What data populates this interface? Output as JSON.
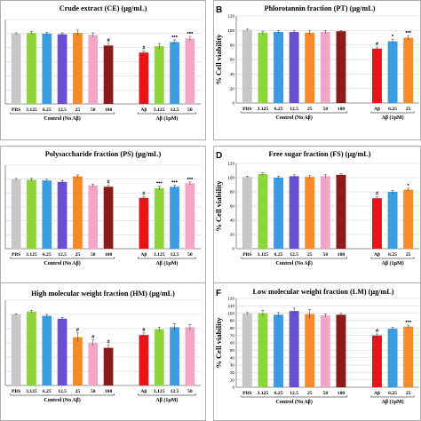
{
  "colors": {
    "PBS": "#c7c7c7",
    "c3125": "#8cd63a",
    "c625": "#3b9ce0",
    "c125": "#6b4fd1",
    "c25": "#f58a2a",
    "c50": "#f2a6c6",
    "c100": "#8b1c1c",
    "AB": "#e6141b"
  },
  "chart_data": [
    {
      "letter": "A",
      "title": "Crude extract (CE) (µg/mL)",
      "type": "bar",
      "ylabel": "",
      "ylim": [
        0,
        120
      ],
      "yticks": [],
      "grid": true,
      "categories": [
        "PBS",
        "3.125",
        "6.25",
        "12.5",
        "25",
        "50",
        "100",
        "Aβ",
        "3.125",
        "12.5",
        "50"
      ],
      "colorKeys": [
        "PBS",
        "c3125",
        "c625",
        "c125",
        "c25",
        "c50",
        "c100",
        "AB",
        "c3125",
        "c625",
        "c50"
      ],
      "values": [
        100,
        101,
        100,
        99,
        101,
        98,
        83,
        73,
        82,
        88,
        93
      ],
      "errors": [
        1,
        2,
        2,
        2,
        4,
        3,
        3,
        2,
        4,
        3,
        3
      ],
      "sig": [
        "",
        "",
        "",
        "",
        "",
        "",
        "#",
        "#",
        "",
        "•••",
        "•••"
      ],
      "groups": [
        "Control (No Aβ)",
        "Aβ (1μM)"
      ],
      "groupSizes": [
        7,
        4
      ]
    },
    {
      "letter": "B",
      "title": "Phlorotannin fraction (PT) (µg/mL)",
      "type": "bar",
      "ylabel": "% Cell viability",
      "ylim": [
        0,
        120
      ],
      "yticks": [
        0,
        20,
        40,
        60,
        80,
        100,
        120
      ],
      "grid": true,
      "categories": [
        "PBS",
        "3.125",
        "6.25",
        "12.5",
        "25",
        "50",
        "100",
        "Aβ",
        "6.25",
        "25"
      ],
      "colorKeys": [
        "PBS",
        "c3125",
        "c625",
        "c125",
        "c25",
        "c50",
        "c100",
        "AB",
        "c625",
        "c25"
      ],
      "values": [
        101,
        97,
        98,
        98,
        97,
        98,
        99,
        75,
        85,
        90
      ],
      "errors": [
        1,
        2,
        2,
        2,
        3,
        2,
        1,
        2,
        3,
        3
      ],
      "sig": [
        "",
        "",
        "",
        "",
        "",
        "",
        "",
        "#",
        "•",
        "•••"
      ],
      "groups": [
        "Control (No Aβ)",
        "Aβ (1μM)"
      ],
      "groupSizes": [
        7,
        3
      ]
    },
    {
      "letter": "C",
      "title": "Polysaccharide fraction (PS) (µg/mL)",
      "type": "bar",
      "ylabel": "",
      "ylim": [
        0,
        120
      ],
      "yticks": [],
      "grid": true,
      "categories": [
        "PBS",
        "3.125",
        "6.25",
        "12.5",
        "25",
        "50",
        "100",
        "Aβ",
        "3.125",
        "12.5",
        "50"
      ],
      "colorKeys": [
        "PBS",
        "c3125",
        "c625",
        "c125",
        "c25",
        "c50",
        "c100",
        "AB",
        "c3125",
        "c625",
        "c50"
      ],
      "values": [
        100,
        99,
        98,
        96,
        104,
        91,
        89,
        73,
        87,
        89,
        94
      ],
      "errors": [
        1,
        2,
        2,
        2,
        2,
        2,
        2,
        2,
        3,
        2,
        2
      ],
      "sig": [
        "",
        "",
        "",
        "",
        "",
        "",
        "#",
        "#",
        "•••",
        "•••",
        "•••"
      ],
      "groups": [
        "Control (No Aβ)",
        "Aβ (1μM)"
      ],
      "groupSizes": [
        7,
        4
      ]
    },
    {
      "letter": "D",
      "title": "Free sugar fraction (FS) (µg/mL)",
      "type": "bar",
      "ylabel": "% Cell viability",
      "ylim": [
        0,
        120
      ],
      "yticks": [
        0,
        20,
        40,
        60,
        80,
        100,
        120
      ],
      "grid": true,
      "categories": [
        "PBS",
        "3.125",
        "6.25",
        "12.5",
        "25",
        "50",
        "100",
        "Aβ",
        "6.25",
        "25"
      ],
      "colorKeys": [
        "PBS",
        "c3125",
        "c625",
        "c125",
        "c25",
        "c50",
        "c100",
        "AB",
        "c625",
        "c25"
      ],
      "values": [
        101,
        105,
        100,
        102,
        101,
        102,
        104,
        71,
        80,
        83
      ],
      "errors": [
        1,
        2,
        2,
        2,
        2,
        2,
        2,
        2,
        2,
        2
      ],
      "sig": [
        "",
        "",
        "",
        "",
        "",
        "",
        "",
        "#",
        "",
        "•"
      ],
      "groups": [
        "Control (No Aβ)",
        "Aβ (1μM)"
      ],
      "groupSizes": [
        7,
        3
      ]
    },
    {
      "letter": "",
      "title": "High molecular weight fraction (HM) (µg/mL)",
      "type": "bar",
      "ylabel": "",
      "ylim": [
        0,
        120
      ],
      "yticks": [],
      "grid": true,
      "categories": [
        "PBS",
        "3.125",
        "6.25",
        "12.5",
        "25",
        "50",
        "100",
        "Aβ",
        "3.125",
        "12.5",
        "50"
      ],
      "colorKeys": [
        "PBS",
        "c3125",
        "c625",
        "c125",
        "c25",
        "c50",
        "c100",
        "AB",
        "c3125",
        "c625",
        "c50"
      ],
      "values": [
        100,
        104,
        98,
        94,
        68,
        60,
        53,
        71,
        79,
        82,
        82
      ],
      "errors": [
        1,
        2,
        2,
        2,
        6,
        4,
        4,
        3,
        3,
        5,
        4
      ],
      "sig": [
        "",
        "",
        "",
        "",
        "#",
        "#",
        "#",
        "#",
        "",
        "",
        ""
      ],
      "groups": [
        "Control (No Aβ)",
        "Aβ (1μM)"
      ],
      "groupSizes": [
        7,
        4
      ]
    },
    {
      "letter": "F",
      "title": "Low molecular weight fraction (LM) (µg/mL)",
      "type": "bar",
      "ylabel": "% Cell viability",
      "ylim": [
        0,
        120
      ],
      "yticks": [
        0,
        10,
        20,
        30,
        40,
        50,
        60,
        70,
        80,
        90,
        100,
        110,
        120
      ],
      "grid": true,
      "categories": [
        "PBS",
        "3.125",
        "6.25",
        "12.5",
        "25",
        "50",
        "100",
        "Aβ",
        "6.25",
        "25"
      ],
      "colorKeys": [
        "PBS",
        "c3125",
        "c625",
        "c125",
        "c25",
        "c50",
        "c100",
        "AB",
        "c625",
        "c25"
      ],
      "values": [
        100,
        100,
        98,
        103,
        99,
        97,
        98,
        70,
        79,
        82
      ],
      "errors": [
        1,
        4,
        3,
        4,
        6,
        2,
        2,
        2,
        2,
        2
      ],
      "sig": [
        "",
        "",
        "",
        "",
        "",
        "",
        "",
        "#",
        "",
        "•••"
      ],
      "groups": [
        "Control (No Aβ)",
        "Aβ (1μM)"
      ],
      "groupSizes": [
        7,
        3
      ]
    }
  ]
}
